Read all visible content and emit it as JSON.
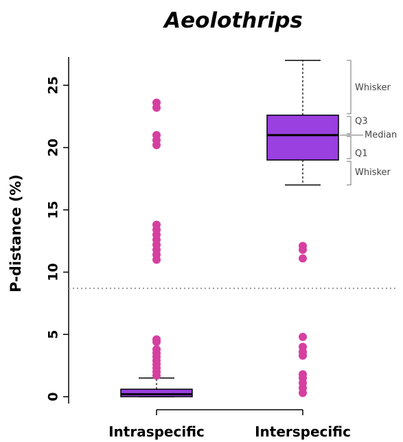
{
  "chart_data": {
    "type": "box",
    "title": "Aeolothrips",
    "ylabel": "P-distance (%)",
    "xlabel": "",
    "ylim": [
      0,
      28
    ],
    "yticks": [
      "0",
      "5",
      "10",
      "15",
      "20",
      "25"
    ],
    "categories": [
      "Intraspecific",
      "Interspecific"
    ],
    "boxes": [
      {
        "category": "Intraspecific",
        "whisker_low": 0,
        "q1": 0,
        "median": 0.2,
        "q3": 0.6,
        "whisker_high": 1.5
      },
      {
        "category": "Interspecific",
        "whisker_low": 17,
        "q1": 19,
        "median": 21,
        "q3": 22.6,
        "whisker_high": 27
      }
    ],
    "outliers": [
      {
        "category": "Intraspecific",
        "values": [
          1.7,
          2.0,
          2.3,
          2.6,
          2.9,
          3.2,
          3.5,
          3.8,
          4.4,
          4.6,
          11.0,
          11.4,
          11.8,
          12.2,
          12.6,
          13.0,
          13.4,
          13.8,
          20.2,
          20.6,
          21.0,
          23.2,
          23.6
        ]
      },
      {
        "category": "Interspecific",
        "values": [
          0.3,
          0.7,
          1.1,
          1.5,
          1.8,
          3.3,
          3.6,
          4.0,
          4.8,
          11.1,
          11.8,
          12.1
        ]
      }
    ],
    "threshold": 8.7,
    "grid": false,
    "box_color": "#9a3fe0",
    "point_color": "#d63fa0",
    "annotations": {
      "whisker_top": "Whisker",
      "q3": "Q3",
      "median": "Median",
      "q1": "Q1",
      "whisker_bottom": "Whisker"
    }
  }
}
